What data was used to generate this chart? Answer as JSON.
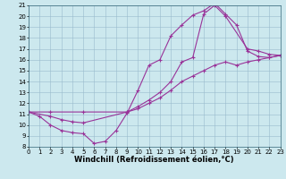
{
  "xlabel": "Windchill (Refroidissement éolien,°C)",
  "bg_color": "#cce8ee",
  "line_color": "#993399",
  "xlim": [
    0,
    23
  ],
  "ylim": [
    8,
    21
  ],
  "xticks": [
    0,
    1,
    2,
    3,
    4,
    5,
    6,
    7,
    8,
    9,
    10,
    11,
    12,
    13,
    14,
    15,
    16,
    17,
    18,
    19,
    20,
    21,
    22,
    23
  ],
  "yticks": [
    8,
    9,
    10,
    11,
    12,
    13,
    14,
    15,
    16,
    17,
    18,
    19,
    20,
    21
  ],
  "curve1_x": [
    0,
    1,
    2,
    3,
    4,
    5,
    6,
    7,
    8,
    9,
    10,
    11,
    12,
    13,
    14,
    15,
    16,
    17,
    18,
    19,
    20,
    21,
    22,
    23
  ],
  "curve1_y": [
    11.2,
    10.8,
    10.0,
    9.5,
    9.3,
    9.2,
    8.3,
    8.5,
    9.5,
    11.1,
    13.2,
    15.5,
    16.0,
    18.2,
    19.2,
    20.1,
    20.5,
    21.2,
    20.2,
    19.2,
    16.8,
    16.3,
    16.2,
    16.4
  ],
  "curve2_x": [
    0,
    2,
    3,
    4,
    5,
    9,
    10,
    11,
    12,
    13,
    14,
    15,
    16,
    17,
    18,
    20,
    21,
    22,
    23
  ],
  "curve2_y": [
    11.2,
    10.8,
    10.5,
    10.3,
    10.2,
    11.2,
    11.7,
    12.3,
    13.0,
    14.0,
    15.8,
    16.2,
    20.2,
    21.0,
    20.0,
    17.0,
    16.8,
    16.5,
    16.4
  ],
  "curve3_x": [
    0,
    2,
    5,
    9,
    10,
    11,
    12,
    13,
    14,
    15,
    16,
    17,
    18,
    19,
    20,
    21,
    22,
    23
  ],
  "curve3_y": [
    11.2,
    11.2,
    11.2,
    11.2,
    11.5,
    12.0,
    12.5,
    13.2,
    14.0,
    14.5,
    15.0,
    15.5,
    15.8,
    15.5,
    15.8,
    16.0,
    16.2,
    16.4
  ],
  "grid_color": "#99bbcc",
  "tick_fontsize": 5.0,
  "xlabel_fontsize": 6.0,
  "marker": "+"
}
